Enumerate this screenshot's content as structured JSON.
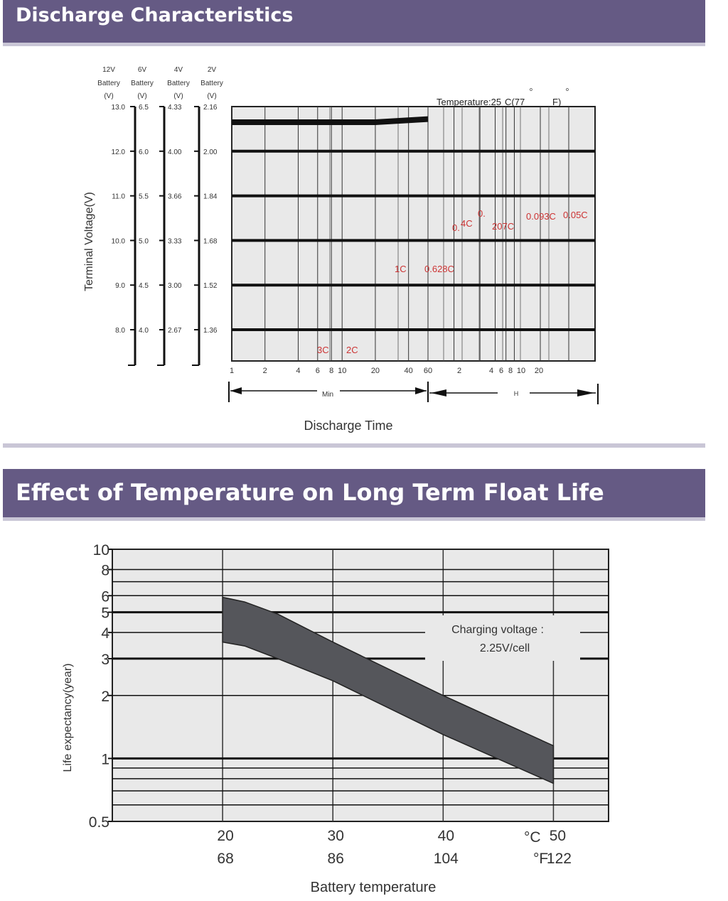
{
  "sections": {
    "discharge_title": "Discharge Characteristics",
    "float_life_title": "Effect of Temperature on Long Term Float Life"
  },
  "colors": {
    "banner": "#655a84",
    "banner_shadow": "#c9c6d6",
    "plot_bg": "#e9e9e9",
    "band_fill": "#55565b",
    "curve_label": "#cc3333"
  },
  "chart_data": [
    {
      "type": "line",
      "title": "Discharge Characteristics",
      "ylabel": "Terminal Voltage(V)",
      "xlabel": "Discharge Time",
      "annotation": "Temperature:25",
      "annotation_rest": "C(77",
      "annotation_end": "F)",
      "degree_marks": [
        "o",
        "o"
      ],
      "battery_columns": [
        {
          "name": "12V",
          "sub": "Battery",
          "unit": "(V)",
          "ticks": [
            "13.0",
            "12.0",
            "11.0",
            "10.0",
            "9.0",
            "8.0"
          ]
        },
        {
          "name": "6V",
          "sub": "Battery",
          "unit": "(V)",
          "ticks": [
            "6.5",
            "6.0",
            "5.5",
            "5.0",
            "4.5",
            "4.0"
          ]
        },
        {
          "name": "4V",
          "sub": "Battery",
          "unit": "(V)",
          "ticks": [
            "4.33",
            "4.00",
            "3.66",
            "3.33",
            "3.00",
            "2.67"
          ]
        },
        {
          "name": "2V",
          "sub": "Battery",
          "unit": "(V)",
          "ticks": [
            "2.16",
            "2.00",
            "1.84",
            "1.68",
            "1.52",
            "1.36"
          ]
        }
      ],
      "y_values_12v": [
        13.0,
        12.0,
        11.0,
        10.0,
        9.0,
        8.0
      ],
      "ylim_12v": [
        7.3,
        13.0
      ],
      "x_ticks_min": [
        "1",
        "2",
        "4",
        "6",
        "8",
        "10",
        "20",
        "40",
        "60"
      ],
      "x_ticks_h": [
        "2",
        "4",
        "6",
        "8",
        "10",
        "20"
      ],
      "x_range_labels": {
        "min": "Min",
        "h": "H"
      },
      "series": [
        {
          "name": "3C",
          "label_parts": [
            "3C"
          ]
        },
        {
          "name": "2C",
          "label_parts": [
            "2C"
          ]
        },
        {
          "name": "1C",
          "label_parts": [
            "1C"
          ]
        },
        {
          "name": "0.628C",
          "label_parts": [
            "0.628C"
          ]
        },
        {
          "name": "0.4C",
          "label_parts": [
            "0.",
            "4C"
          ]
        },
        {
          "name": "0.207C",
          "label_parts": [
            "0.",
            "207C"
          ]
        },
        {
          "name": "0.093C",
          "label_parts": [
            "0.093C"
          ]
        },
        {
          "name": "0.05C",
          "label_parts": [
            "0.05C"
          ]
        }
      ],
      "initial_voltage_line": {
        "y_start": 12.65,
        "y_end": 12.72,
        "x_end_min": 60
      }
    },
    {
      "type": "area",
      "title": "Effect of Temperature on Long Term Float Life",
      "ylabel": "Life expectancy(year)",
      "xlabel": "Battery temperature",
      "y_scale": "log",
      "ylim": [
        0.5,
        10
      ],
      "y_ticks": [
        "10",
        "8",
        "6",
        "5",
        "4",
        "3",
        "2",
        "1",
        "0.5"
      ],
      "xlim_c": [
        10,
        55
      ],
      "x_ticks_c": [
        "20",
        "30",
        "40",
        "50"
      ],
      "x_ticks_f": [
        "68",
        "86",
        "104",
        "122"
      ],
      "x_unit_c": "°C",
      "x_unit_f": "°F",
      "annotation": [
        "Charging voltage :",
        "2.25V/cell"
      ],
      "series": [
        {
          "name": "upper bound",
          "x": [
            20,
            22,
            25,
            30,
            40,
            50
          ],
          "values": [
            5.9,
            5.6,
            4.9,
            3.6,
            2.0,
            1.15
          ]
        },
        {
          "name": "lower bound",
          "x": [
            20,
            22,
            25,
            30,
            40,
            50
          ],
          "values": [
            3.6,
            3.45,
            3.0,
            2.35,
            1.3,
            0.76
          ]
        }
      ]
    }
  ]
}
